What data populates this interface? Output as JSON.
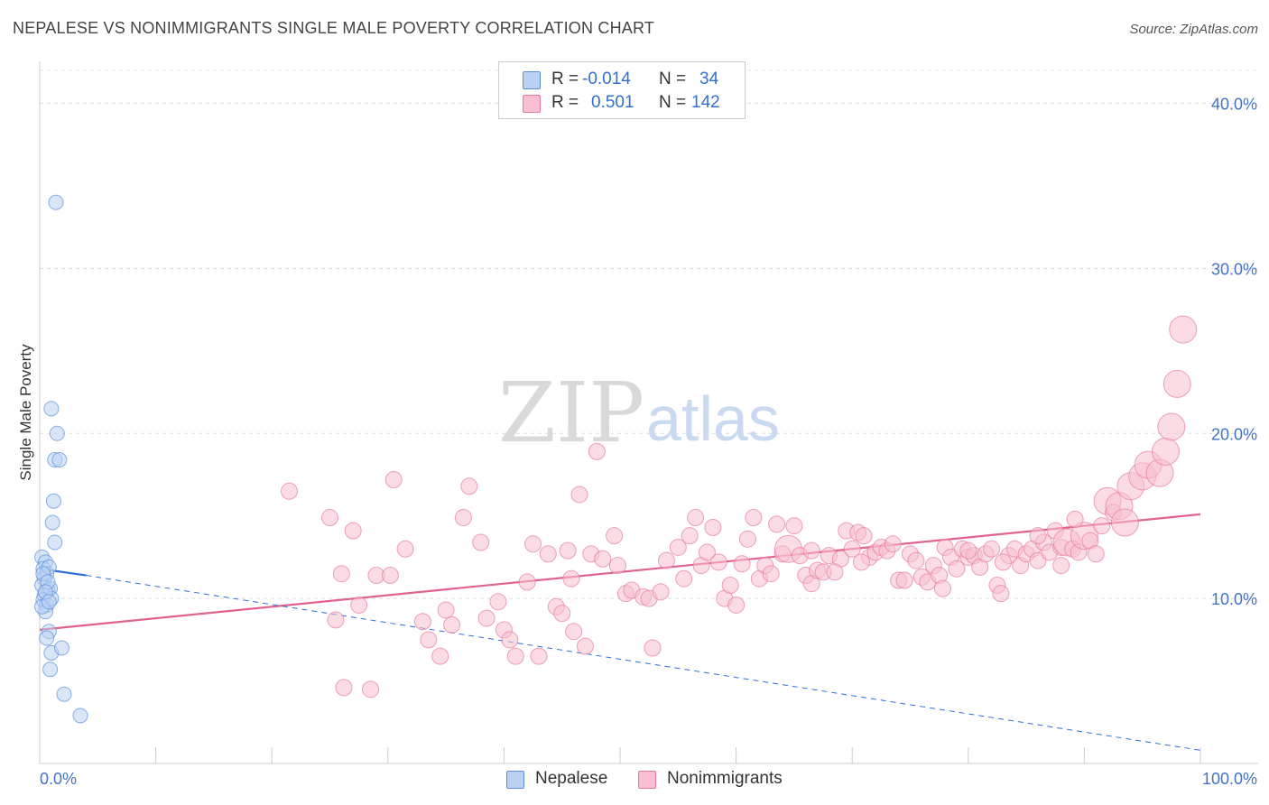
{
  "header": {
    "title": "NEPALESE VS NONIMMIGRANTS SINGLE MALE POVERTY CORRELATION CHART",
    "source": "Source: ZipAtlas.com"
  },
  "legend": {
    "row1": {
      "r_label": "R =",
      "r_value": "-0.014",
      "n_label": "N =",
      "n_value": "34"
    },
    "row2": {
      "r_label": "R =",
      "r_value": "0.501",
      "n_label": "N =",
      "n_value": "142"
    }
  },
  "watermark": {
    "zip": "ZIP",
    "atlas": "atlas"
  },
  "colors": {
    "nepalese_fill": "#b9d2f3",
    "nepalese_stroke": "#5b8fd8",
    "nonimm_fill": "#f7bfd0",
    "nonimm_stroke": "#e77a9c",
    "nepalese_line": "#2f6fd6",
    "nonimm_line": "#e0638c"
  },
  "chart_data": {
    "type": "scatter",
    "title": "NEPALESE VS NONIMMIGRANTS SINGLE MALE POVERTY CORRELATION CHART",
    "xlabel": "",
    "ylabel": "Single Male Poverty",
    "xlim": [
      0,
      100
    ],
    "ylim": [
      0,
      42
    ],
    "x_tick_labels": [
      "0.0%",
      "100.0%"
    ],
    "y_ticks": [
      10,
      20,
      30,
      40
    ],
    "y_tick_labels": [
      "10.0%",
      "20.0%",
      "30.0%",
      "40.0%"
    ],
    "legend_position": "bottom",
    "series": [
      {
        "name": "Nepalese",
        "r": -0.014,
        "n": 34,
        "trend_solid": [
          [
            0,
            11.8
          ],
          [
            4,
            11.4
          ]
        ],
        "trend_dashed": [
          [
            4,
            11.4
          ],
          [
            100,
            0.8
          ]
        ],
        "points": [
          [
            1.4,
            34.0,
            1
          ],
          [
            0.2,
            12.5,
            1
          ],
          [
            0.5,
            12.2,
            1
          ],
          [
            0.3,
            11.8,
            1
          ],
          [
            0.6,
            11.5,
            1
          ],
          [
            0.4,
            11.2,
            1
          ],
          [
            0.8,
            11.9,
            1
          ],
          [
            0.2,
            10.8,
            1
          ],
          [
            0.7,
            10.5,
            1
          ],
          [
            0.4,
            10.2,
            1
          ],
          [
            0.9,
            10.6,
            1
          ],
          [
            0.3,
            9.9,
            1
          ],
          [
            0.6,
            9.6,
            1
          ],
          [
            1.0,
            10.0,
            1
          ],
          [
            0.5,
            9.2,
            1
          ],
          [
            0.2,
            9.5,
            1
          ],
          [
            1.0,
            21.5,
            1
          ],
          [
            1.5,
            20.0,
            1
          ],
          [
            1.3,
            18.4,
            1
          ],
          [
            1.7,
            18.4,
            1
          ],
          [
            1.2,
            15.9,
            1
          ],
          [
            1.1,
            14.6,
            1
          ],
          [
            1.3,
            13.4,
            1
          ],
          [
            0.8,
            8.0,
            1
          ],
          [
            0.6,
            7.6,
            1
          ],
          [
            1.0,
            6.7,
            1
          ],
          [
            1.9,
            7.0,
            1
          ],
          [
            0.9,
            5.7,
            1
          ],
          [
            2.1,
            4.2,
            1
          ],
          [
            3.5,
            2.9,
            1
          ],
          [
            0.3,
            11.5,
            1
          ],
          [
            0.7,
            11.0,
            1
          ],
          [
            0.5,
            10.4,
            1
          ],
          [
            0.8,
            9.8,
            1
          ]
        ]
      },
      {
        "name": "Nonimmigrants",
        "r": 0.501,
        "n": 142,
        "trend_solid": [
          [
            0,
            8.1
          ],
          [
            100,
            15.1
          ]
        ],
        "points": [
          [
            21.5,
            16.5,
            1
          ],
          [
            25.0,
            14.9,
            1
          ],
          [
            27.0,
            14.1,
            1
          ],
          [
            26.0,
            11.5,
            1
          ],
          [
            29.0,
            11.4,
            1
          ],
          [
            30.2,
            11.4,
            1
          ],
          [
            27.5,
            9.6,
            1
          ],
          [
            25.5,
            8.7,
            1
          ],
          [
            26.2,
            4.6,
            1
          ],
          [
            28.5,
            4.5,
            1
          ],
          [
            30.5,
            17.2,
            1
          ],
          [
            31.5,
            13.0,
            1
          ],
          [
            33.0,
            8.6,
            1
          ],
          [
            33.5,
            7.5,
            1
          ],
          [
            34.5,
            6.5,
            1
          ],
          [
            35.0,
            9.3,
            1
          ],
          [
            35.5,
            8.4,
            1
          ],
          [
            36.5,
            14.9,
            1
          ],
          [
            37.0,
            16.8,
            1
          ],
          [
            38.0,
            13.4,
            1
          ],
          [
            38.5,
            8.8,
            1
          ],
          [
            39.5,
            9.8,
            1
          ],
          [
            40.0,
            8.1,
            1
          ],
          [
            40.5,
            7.5,
            1
          ],
          [
            41.0,
            6.5,
            1
          ],
          [
            42.0,
            11.0,
            1
          ],
          [
            42.5,
            13.3,
            1
          ],
          [
            43.0,
            6.5,
            1
          ],
          [
            43.8,
            12.7,
            1
          ],
          [
            44.5,
            9.5,
            1
          ],
          [
            45.0,
            9.1,
            1
          ],
          [
            45.5,
            12.9,
            1
          ],
          [
            45.8,
            11.2,
            1
          ],
          [
            46.5,
            16.3,
            1
          ],
          [
            46.0,
            8.0,
            1
          ],
          [
            47.0,
            7.1,
            1
          ],
          [
            47.5,
            12.7,
            1
          ],
          [
            48.0,
            18.9,
            1
          ],
          [
            48.5,
            12.4,
            1
          ],
          [
            49.5,
            13.8,
            1
          ],
          [
            49.8,
            12.0,
            1
          ],
          [
            50.5,
            10.3,
            1
          ],
          [
            51.0,
            10.5,
            1
          ],
          [
            52.0,
            10.1,
            1
          ],
          [
            52.5,
            10.0,
            1
          ],
          [
            52.8,
            7.0,
            1
          ],
          [
            53.5,
            10.4,
            1
          ],
          [
            54.0,
            12.3,
            1
          ],
          [
            55.0,
            13.1,
            1
          ],
          [
            55.5,
            11.2,
            1
          ],
          [
            56.0,
            13.8,
            1
          ],
          [
            56.5,
            14.9,
            1
          ],
          [
            57.0,
            12.0,
            1
          ],
          [
            57.5,
            12.8,
            1
          ],
          [
            58.0,
            14.3,
            1
          ],
          [
            58.5,
            12.2,
            1
          ],
          [
            59.0,
            10.0,
            1
          ],
          [
            59.5,
            10.8,
            1
          ],
          [
            60.0,
            9.6,
            1
          ],
          [
            60.5,
            12.1,
            1
          ],
          [
            61.5,
            14.9,
            1
          ],
          [
            61.0,
            13.6,
            1
          ],
          [
            62.0,
            11.2,
            1
          ],
          [
            62.5,
            12.0,
            1
          ],
          [
            63.5,
            14.5,
            1
          ],
          [
            63.0,
            11.5,
            1
          ],
          [
            64.0,
            12.7,
            1
          ],
          [
            64.5,
            13.0,
            2
          ],
          [
            65.0,
            14.4,
            1
          ],
          [
            65.5,
            12.6,
            1
          ],
          [
            66.0,
            11.4,
            1
          ],
          [
            66.5,
            10.9,
            1
          ],
          [
            67.0,
            11.7,
            1
          ],
          [
            67.5,
            11.6,
            1
          ],
          [
            68.0,
            12.6,
            1
          ],
          [
            69.0,
            12.4,
            1
          ],
          [
            69.5,
            14.1,
            1
          ],
          [
            70.0,
            13.0,
            1
          ],
          [
            70.5,
            14.0,
            1
          ],
          [
            71.0,
            13.8,
            1
          ],
          [
            71.5,
            12.5,
            1
          ],
          [
            72.0,
            12.8,
            1
          ],
          [
            72.5,
            13.1,
            1
          ],
          [
            73.0,
            12.9,
            1
          ],
          [
            73.5,
            13.3,
            1
          ],
          [
            74.0,
            11.1,
            1
          ],
          [
            74.5,
            11.1,
            1
          ],
          [
            75.0,
            12.7,
            1
          ],
          [
            75.5,
            12.3,
            1
          ],
          [
            76.0,
            11.3,
            1
          ],
          [
            76.5,
            11.0,
            1
          ],
          [
            77.0,
            12.0,
            1
          ],
          [
            77.5,
            11.4,
            1
          ],
          [
            78.0,
            13.1,
            1
          ],
          [
            78.5,
            12.5,
            1
          ],
          [
            79.0,
            11.8,
            1
          ],
          [
            79.5,
            13.0,
            1
          ],
          [
            80.0,
            12.5,
            1
          ],
          [
            80.5,
            12.6,
            1
          ],
          [
            81.0,
            11.9,
            1
          ],
          [
            81.5,
            12.7,
            1
          ],
          [
            82.0,
            13.0,
            1
          ],
          [
            82.5,
            10.8,
            1
          ],
          [
            82.8,
            10.3,
            1
          ],
          [
            83.5,
            12.6,
            1
          ],
          [
            84.0,
            13.0,
            1
          ],
          [
            84.5,
            12.0,
            1
          ],
          [
            85.0,
            12.7,
            1
          ],
          [
            85.5,
            13.0,
            1
          ],
          [
            86.0,
            12.3,
            1
          ],
          [
            86.5,
            13.4,
            1
          ],
          [
            87.0,
            12.8,
            1
          ],
          [
            87.5,
            14.1,
            1
          ],
          [
            88.0,
            13.1,
            1
          ],
          [
            88.5,
            13.4,
            2
          ],
          [
            89.0,
            13.0,
            1
          ],
          [
            89.5,
            12.8,
            1
          ],
          [
            90.0,
            13.8,
            2
          ],
          [
            90.5,
            13.5,
            1
          ],
          [
            91.0,
            12.7,
            1
          ],
          [
            91.5,
            14.4,
            1
          ],
          [
            92.0,
            15.9,
            2
          ],
          [
            92.5,
            15.2,
            1
          ],
          [
            93.0,
            15.6,
            2
          ],
          [
            93.5,
            14.6,
            2
          ],
          [
            94.0,
            16.8,
            2
          ],
          [
            95.0,
            17.4,
            2
          ],
          [
            95.5,
            18.1,
            2
          ],
          [
            96.5,
            17.6,
            2
          ],
          [
            97.0,
            18.9,
            2
          ],
          [
            97.5,
            20.4,
            2
          ],
          [
            98.0,
            23.0,
            2
          ],
          [
            98.5,
            26.3,
            2
          ],
          [
            89.2,
            14.8,
            1
          ],
          [
            88.0,
            12.0,
            1
          ],
          [
            86.0,
            13.8,
            1
          ],
          [
            83.0,
            12.2,
            1
          ],
          [
            80.0,
            12.9,
            1
          ],
          [
            77.8,
            10.6,
            1
          ],
          [
            70.8,
            12.2,
            1
          ],
          [
            68.5,
            11.6,
            1
          ],
          [
            66.5,
            12.9,
            1
          ]
        ]
      }
    ]
  }
}
